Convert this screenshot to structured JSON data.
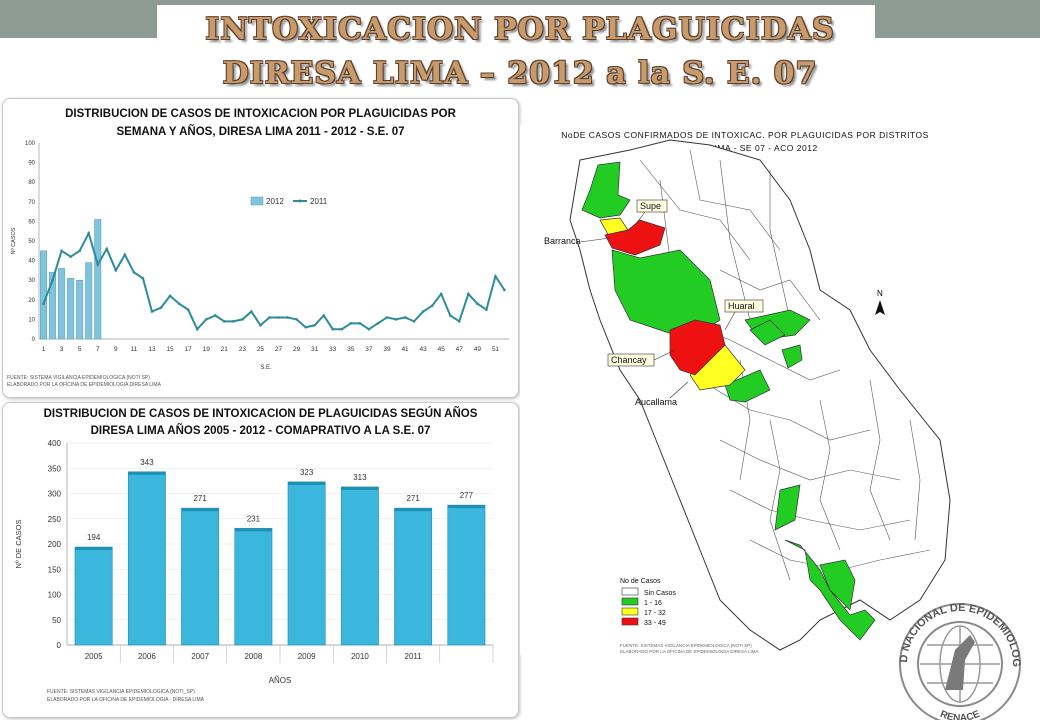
{
  "header": {
    "line1": "INTOXICACION POR PLAGUICIDAS",
    "line2": "DIRESA LIMA – 2012 a la  S. E. 07"
  },
  "chart_data": [
    {
      "type": "bar",
      "title_line1": "DISTRIBUCION DE CASOS DE INTOXICACION POR PLAGUICIDAS POR",
      "title_line2": "SEMANA Y AÑOS, DIRESA LIMA 2011 - 2012 - S.E.  07",
      "xlabel": "S.E.",
      "ylabel": "Nº CASOS",
      "ylim": [
        0,
        100
      ],
      "yticks": [
        0,
        10,
        20,
        30,
        40,
        50,
        60,
        70,
        80,
        90,
        100
      ],
      "xticks": [
        "1",
        "3",
        "5",
        "7",
        "9",
        "11",
        "13",
        "15",
        "17",
        "19",
        "21",
        "23",
        "25",
        "27",
        "29",
        "31",
        "33",
        "35",
        "37",
        "39",
        "41",
        "43",
        "45",
        "47",
        "49",
        "51"
      ],
      "legend_placement": "top-center",
      "series": [
        {
          "name": "2012",
          "type": "bar",
          "color": "#7fc3dc",
          "x": [
            1,
            2,
            3,
            4,
            5,
            6,
            7
          ],
          "values": [
            45,
            34,
            36,
            31,
            30,
            39,
            61
          ]
        },
        {
          "name": "2011",
          "type": "line",
          "color": "#2e8b9a",
          "x": [
            1,
            2,
            3,
            4,
            5,
            6,
            7,
            8,
            9,
            10,
            11,
            12,
            13,
            14,
            15,
            16,
            17,
            18,
            19,
            20,
            21,
            22,
            23,
            24,
            25,
            26,
            27,
            28,
            29,
            30,
            31,
            32,
            33,
            34,
            35,
            36,
            37,
            38,
            39,
            40,
            41,
            42,
            43,
            44,
            45,
            46,
            47,
            48,
            49,
            50,
            51,
            52
          ],
          "values": [
            18,
            30,
            45,
            42,
            45,
            54,
            38,
            46,
            35,
            43,
            34,
            31,
            14,
            16,
            22,
            18,
            15,
            5,
            10,
            12,
            9,
            9,
            10,
            14,
            7,
            11,
            11,
            11,
            10,
            6,
            7,
            12,
            5,
            5,
            8,
            8,
            5,
            8,
            11,
            10,
            11,
            9,
            14,
            17,
            23,
            12,
            9,
            23,
            18,
            15,
            32,
            25
          ]
        }
      ],
      "source_line1": "FUENTE: SISTEMA VIGILANCIA EPIDEMIOLOGICA (NOTI SP)",
      "source_line2": "ELABORADO POR LA OFICINA DE EPIDEMIOLOGIA  DIRESA LIMA"
    },
    {
      "type": "bar",
      "title_line1": "DISTRIBUCION DE CASOS DE INTOXICACION DE  PLAGUICIDAS SEGÚN AÑOS",
      "title_line2": "DIRESA LIMA AÑOS 2005 - 2012 - COMAPRATIVO A LA S.E.  07",
      "xlabel": "AÑOS",
      "ylabel": "Nº DE CASOS",
      "ylim": [
        0,
        400
      ],
      "yticks": [
        0,
        50,
        100,
        150,
        200,
        250,
        300,
        350,
        400
      ],
      "categories": [
        "2005",
        "2006",
        "2007",
        "2008",
        "2009",
        "2010",
        "2011",
        ""
      ],
      "values": [
        194,
        343,
        271,
        231,
        323,
        313,
        271,
        277
      ],
      "color": "#3bb6dc",
      "source_line1": "FUENTE: SISTEMAS VIGILANCIA EPIDEMIOLOGICA (NOTI_SP)",
      "source_line2": "ELABORADO POR LA OFICINA DE EPIDEMIOLOGIA - DIRESA LIMA"
    }
  ],
  "map": {
    "title_line1": "NoDE CASOS CONFIRMADOS DE INTOXICAC. POR PLAGUICIDAS POR DISTRITOS",
    "title_line2": "DIRESA LIMA - SE 07 - ACO 2012",
    "labels": [
      "Supe",
      "Barranca",
      "Huaral",
      "Chancay",
      "Aucallama"
    ],
    "legend_title": "No de Casos",
    "legend": [
      {
        "label": "Sin Casos",
        "color": "#ffffff"
      },
      {
        "label": "1 - 16",
        "color": "#22cc22"
      },
      {
        "label": "17 - 32",
        "color": "#ffff22"
      },
      {
        "label": "33 - 49",
        "color": "#ee1111"
      }
    ],
    "north": "N",
    "source_line1": "FUENTE: SISTEMAS VIGILANCIA EPIDEMIOLOGICA (NOTI SP)",
    "source_line2": "ELABORADO POR LA OFICINA DE EPIDEMIOLOGIA DIRESA LIMA"
  },
  "logo": {
    "top_text": "RED NACIONAL DE EPIDEMIOLOGIA",
    "bottom_text": "RENACE"
  }
}
